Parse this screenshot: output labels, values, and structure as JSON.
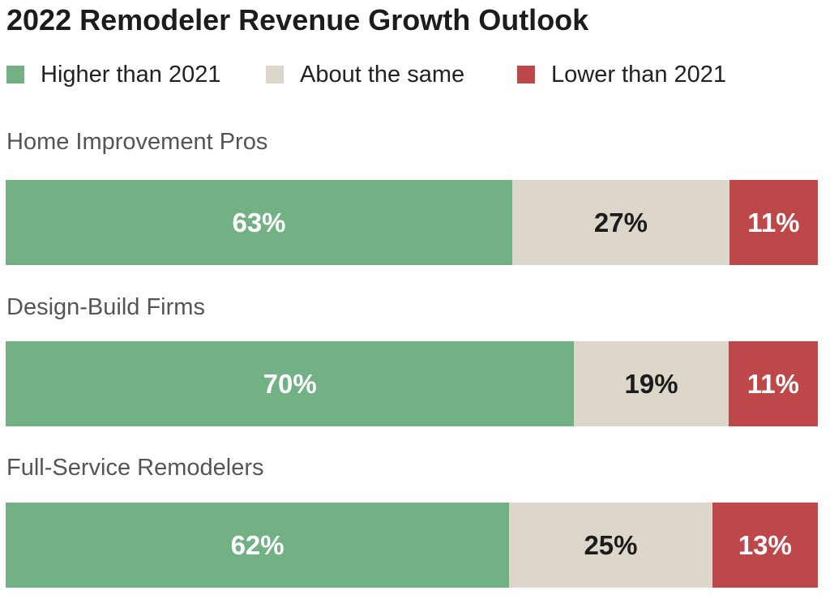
{
  "chart_data": {
    "type": "bar",
    "orientation": "horizontal",
    "stacked": true,
    "title": "2022 Remodeler Revenue Growth Outlook",
    "legend_position": "top",
    "legend": [
      {
        "key": "higher",
        "label": "Higher than 2021",
        "color": "#72b183"
      },
      {
        "key": "same",
        "label": "About the same",
        "color": "#dcd7ca"
      },
      {
        "key": "lower",
        "label": "Lower than 2021",
        "color": "#bd4749"
      }
    ],
    "categories": [
      "Home Improvement Pros",
      "Design-Build Firms",
      "Full-Service Remodelers"
    ],
    "series": [
      {
        "name": "Higher than 2021",
        "key": "higher",
        "values": [
          63,
          70,
          62
        ],
        "labels": [
          "63%",
          "70%",
          "62%"
        ]
      },
      {
        "name": "About the same",
        "key": "same",
        "values": [
          27,
          19,
          25
        ],
        "labels": [
          "27%",
          "19%",
          "25%"
        ]
      },
      {
        "name": "Lower than 2021",
        "key": "lower",
        "values": [
          11,
          11,
          13
        ],
        "labels": [
          "11%",
          "11%",
          "13%"
        ]
      }
    ],
    "unit": "%"
  }
}
